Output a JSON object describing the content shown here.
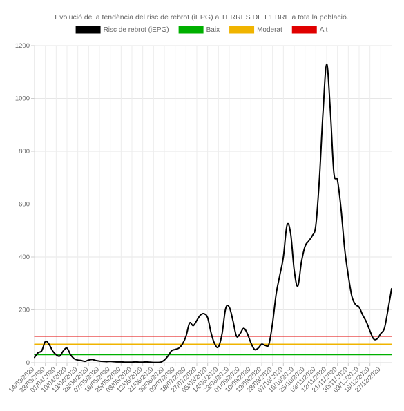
{
  "chart_data": {
    "type": "line",
    "title": "Evolució de la tendència del risc de rebrot (iEPG) a TERRES DE L'EBRE a tota la població.",
    "xlabel": "",
    "ylabel": "",
    "ylim": [
      0,
      1200
    ],
    "yticks": [
      0,
      200,
      400,
      600,
      800,
      1000,
      1200
    ],
    "grid": true,
    "legend_position": "top",
    "x_start": "14/03/2020",
    "x_end": "05/01/2021",
    "x_tick_labels": [
      "14/03/2020",
      "23/03/2020",
      "01/04/2020",
      "10/04/2020",
      "19/04/2020",
      "28/04/2020",
      "07/05/2020",
      "16/05/2020",
      "25/05/2020",
      "03/06/2020",
      "12/06/2020",
      "21/06/2020",
      "30/06/2020",
      "09/07/2020",
      "18/07/2020",
      "27/07/2020",
      "05/08/2020",
      "14/08/2020",
      "23/08/2020",
      "01/09/2020",
      "10/09/2020",
      "19/09/2020",
      "28/09/2020",
      "07/10/2020",
      "16/10/2020",
      "25/10/2020",
      "03/11/2020",
      "12/11/2020",
      "21/11/2020",
      "30/11/2020",
      "09/12/2020",
      "18/12/2020",
      "27/12/2020"
    ],
    "series": [
      {
        "name": "Risc de rebrot (iEPG)",
        "color": "#000000",
        "points": [
          [
            "14/03/2020",
            20
          ],
          [
            "17/03/2020",
            38
          ],
          [
            "20/03/2020",
            45
          ],
          [
            "23/03/2020",
            80
          ],
          [
            "26/03/2020",
            70
          ],
          [
            "29/03/2020",
            45
          ],
          [
            "01/04/2020",
            30
          ],
          [
            "04/04/2020",
            25
          ],
          [
            "07/04/2020",
            45
          ],
          [
            "10/04/2020",
            55
          ],
          [
            "13/04/2020",
            30
          ],
          [
            "16/04/2020",
            15
          ],
          [
            "19/04/2020",
            10
          ],
          [
            "22/04/2020",
            8
          ],
          [
            "25/04/2020",
            5
          ],
          [
            "28/04/2020",
            10
          ],
          [
            "01/05/2020",
            12
          ],
          [
            "04/05/2020",
            8
          ],
          [
            "07/05/2020",
            6
          ],
          [
            "10/05/2020",
            5
          ],
          [
            "13/05/2020",
            4
          ],
          [
            "16/05/2020",
            5
          ],
          [
            "19/05/2020",
            4
          ],
          [
            "22/05/2020",
            3
          ],
          [
            "25/05/2020",
            3
          ],
          [
            "28/05/2020",
            2
          ],
          [
            "31/05/2020",
            2
          ],
          [
            "03/06/2020",
            2
          ],
          [
            "06/06/2020",
            3
          ],
          [
            "09/06/2020",
            2
          ],
          [
            "12/06/2020",
            2
          ],
          [
            "15/06/2020",
            3
          ],
          [
            "18/06/2020",
            2
          ],
          [
            "21/06/2020",
            1
          ],
          [
            "24/06/2020",
            1
          ],
          [
            "27/06/2020",
            2
          ],
          [
            "30/06/2020",
            10
          ],
          [
            "03/07/2020",
            25
          ],
          [
            "06/07/2020",
            45
          ],
          [
            "09/07/2020",
            50
          ],
          [
            "12/07/2020",
            55
          ],
          [
            "15/07/2020",
            70
          ],
          [
            "18/07/2020",
            100
          ],
          [
            "21/07/2020",
            150
          ],
          [
            "24/07/2020",
            140
          ],
          [
            "27/07/2020",
            160
          ],
          [
            "30/07/2020",
            180
          ],
          [
            "02/08/2020",
            185
          ],
          [
            "05/08/2020",
            170
          ],
          [
            "08/08/2020",
            110
          ],
          [
            "11/08/2020",
            70
          ],
          [
            "14/08/2020",
            60
          ],
          [
            "17/08/2020",
            110
          ],
          [
            "20/08/2020",
            205
          ],
          [
            "23/08/2020",
            210
          ],
          [
            "26/08/2020",
            160
          ],
          [
            "29/08/2020",
            100
          ],
          [
            "01/09/2020",
            110
          ],
          [
            "04/09/2020",
            130
          ],
          [
            "07/09/2020",
            110
          ],
          [
            "10/09/2020",
            75
          ],
          [
            "13/09/2020",
            50
          ],
          [
            "16/09/2020",
            55
          ],
          [
            "19/09/2020",
            70
          ],
          [
            "22/09/2020",
            65
          ],
          [
            "25/09/2020",
            70
          ],
          [
            "28/09/2020",
            150
          ],
          [
            "01/10/2020",
            260
          ],
          [
            "04/10/2020",
            330
          ],
          [
            "07/10/2020",
            400
          ],
          [
            "10/10/2020",
            520
          ],
          [
            "13/10/2020",
            490
          ],
          [
            "16/10/2020",
            350
          ],
          [
            "19/10/2020",
            290
          ],
          [
            "22/10/2020",
            380
          ],
          [
            "25/10/2020",
            440
          ],
          [
            "28/10/2020",
            460
          ],
          [
            "31/10/2020",
            480
          ],
          [
            "03/11/2020",
            520
          ],
          [
            "06/11/2020",
            700
          ],
          [
            "09/11/2020",
            950
          ],
          [
            "12/11/2020",
            1130
          ],
          [
            "15/11/2020",
            960
          ],
          [
            "18/11/2020",
            720
          ],
          [
            "21/11/2020",
            690
          ],
          [
            "24/11/2020",
            580
          ],
          [
            "27/11/2020",
            430
          ],
          [
            "30/11/2020",
            330
          ],
          [
            "03/12/2020",
            250
          ],
          [
            "06/12/2020",
            220
          ],
          [
            "09/12/2020",
            210
          ],
          [
            "12/12/2020",
            180
          ],
          [
            "15/12/2020",
            155
          ],
          [
            "18/12/2020",
            120
          ],
          [
            "21/12/2020",
            90
          ],
          [
            "24/12/2020",
            90
          ],
          [
            "27/12/2020",
            110
          ],
          [
            "30/12/2020",
            130
          ],
          [
            "02/01/2021",
            200
          ],
          [
            "05/01/2021",
            280
          ]
        ]
      },
      {
        "name": "Baix",
        "color": "#00b000",
        "points": [
          [
            "14/03/2020",
            30
          ],
          [
            "05/01/2021",
            30
          ]
        ]
      },
      {
        "name": "Moderat",
        "color": "#f0b400",
        "points": [
          [
            "14/03/2020",
            70
          ],
          [
            "05/01/2021",
            70
          ]
        ]
      },
      {
        "name": "Alt",
        "color": "#e00000",
        "points": [
          [
            "14/03/2020",
            100
          ],
          [
            "05/01/2021",
            100
          ]
        ]
      }
    ]
  }
}
